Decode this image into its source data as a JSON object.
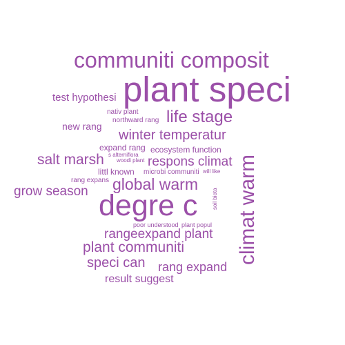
{
  "word_cloud": {
    "color": "#9b4fa8",
    "words": [
      {
        "text": "plant speci",
        "orientation": "horizontal"
      },
      {
        "text": "communiti composit",
        "orientation": "horizontal"
      },
      {
        "text": "degre c",
        "orientation": "horizontal"
      },
      {
        "text": "climat warm",
        "orientation": "vertical"
      },
      {
        "text": "life stage",
        "orientation": "horizontal"
      },
      {
        "text": "test hypothesi",
        "orientation": "horizontal"
      },
      {
        "text": "nativ plant",
        "orientation": "horizontal"
      },
      {
        "text": "northward rang",
        "orientation": "horizontal"
      },
      {
        "text": "new rang",
        "orientation": "horizontal"
      },
      {
        "text": "winter temperatur",
        "orientation": "horizontal"
      },
      {
        "text": "expand rang",
        "orientation": "horizontal"
      },
      {
        "text": "ecosystem function",
        "orientation": "horizontal"
      },
      {
        "text": "s alterniflora",
        "orientation": "horizontal"
      },
      {
        "text": "woodi plant",
        "orientation": "horizontal"
      },
      {
        "text": "salt marsh",
        "orientation": "horizontal"
      },
      {
        "text": "respons climat",
        "orientation": "horizontal"
      },
      {
        "text": "littl known",
        "orientation": "horizontal"
      },
      {
        "text": "microbi communiti",
        "orientation": "horizontal"
      },
      {
        "text": "will like",
        "orientation": "horizontal"
      },
      {
        "text": "rang expans",
        "orientation": "horizontal"
      },
      {
        "text": "global warm",
        "orientation": "horizontal"
      },
      {
        "text": "grow season",
        "orientation": "horizontal"
      },
      {
        "text": "soil biota",
        "orientation": "vertical"
      },
      {
        "text": "poor understood",
        "orientation": "horizontal"
      },
      {
        "text": "plant popul",
        "orientation": "horizontal"
      },
      {
        "text": "rangeexpand plant",
        "orientation": "horizontal"
      },
      {
        "text": "plant communiti",
        "orientation": "horizontal"
      },
      {
        "text": "speci can",
        "orientation": "horizontal"
      },
      {
        "text": "rang expand",
        "orientation": "horizontal"
      },
      {
        "text": "result suggest",
        "orientation": "horizontal"
      }
    ]
  }
}
